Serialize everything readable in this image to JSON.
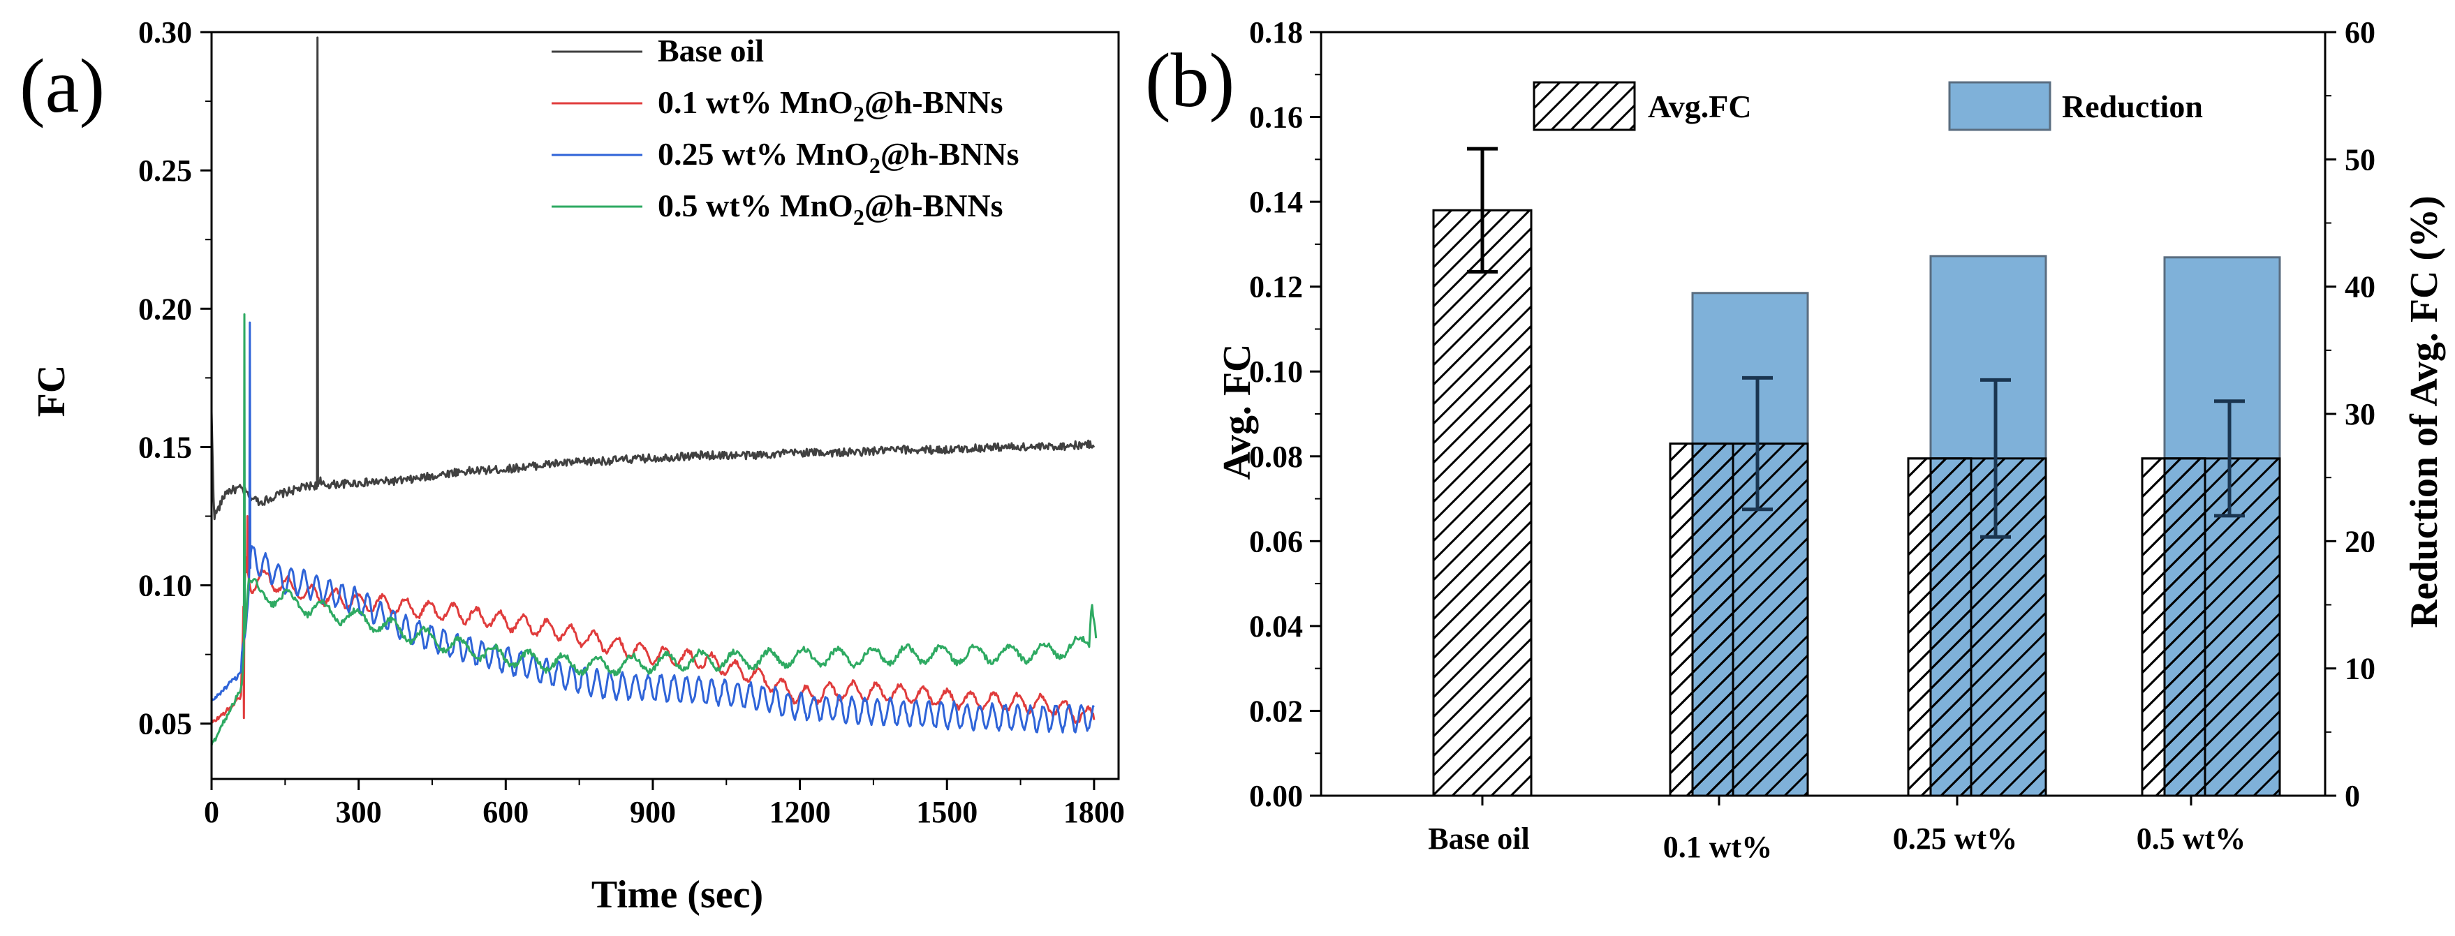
{
  "chart_data": [
    {
      "panel_label": "(a)",
      "type": "line",
      "xlabel": "Time (sec)",
      "ylabel": "FC",
      "xlim": [
        0,
        1850
      ],
      "ylim": [
        0.03,
        0.3
      ],
      "xticks": [
        0,
        300,
        600,
        900,
        1200,
        1500,
        1800
      ],
      "yticks": [
        0.05,
        0.1,
        0.15,
        0.2,
        0.25,
        0.3
      ],
      "legend_position": "top-right",
      "series": [
        {
          "name": "Base oil",
          "label_main": "Base oil",
          "color": "#404040",
          "trend": [
            [
              0,
              0.162
            ],
            [
              5,
              0.125
            ],
            [
              15,
              0.128
            ],
            [
              30,
              0.134
            ],
            [
              60,
              0.135
            ],
            [
              80,
              0.132
            ],
            [
              100,
              0.13
            ],
            [
              140,
              0.133
            ],
            [
              200,
              0.136
            ],
            [
              300,
              0.137
            ],
            [
              400,
              0.138
            ],
            [
              500,
              0.141
            ],
            [
              600,
              0.142
            ],
            [
              700,
              0.144
            ],
            [
              800,
              0.145
            ],
            [
              900,
              0.146
            ],
            [
              1000,
              0.147
            ],
            [
              1100,
              0.147
            ],
            [
              1200,
              0.148
            ],
            [
              1300,
              0.148
            ],
            [
              1400,
              0.149
            ],
            [
              1500,
              0.149
            ],
            [
              1600,
              0.15
            ],
            [
              1700,
              0.15
            ],
            [
              1800,
              0.151
            ]
          ],
          "noise_amp": 0.0015,
          "osc_amp": 0,
          "osc_period": 40,
          "spikes": [
            [
              216,
              0.298
            ],
            [
              222,
              0.139
            ]
          ]
        },
        {
          "name": "0.1 wt% MnO2@h-BNNs",
          "label_main": "0.1 wt% MnO",
          "label_sub": "2",
          "label_tail": "@h-BNNs",
          "color": "#e03c3c",
          "trend": [
            [
              0,
              0.05
            ],
            [
              40,
              0.056
            ],
            [
              60,
              0.06
            ],
            [
              70,
              0.11
            ],
            [
              80,
              0.1
            ],
            [
              100,
              0.103
            ],
            [
              150,
              0.1
            ],
            [
              200,
              0.097
            ],
            [
              300,
              0.094
            ],
            [
              400,
              0.092
            ],
            [
              500,
              0.09
            ],
            [
              600,
              0.087
            ],
            [
              700,
              0.084
            ],
            [
              800,
              0.079
            ],
            [
              900,
              0.075
            ],
            [
              1000,
              0.073
            ],
            [
              1100,
              0.068
            ],
            [
              1200,
              0.06
            ],
            [
              1300,
              0.062
            ],
            [
              1400,
              0.061
            ],
            [
              1500,
              0.059
            ],
            [
              1600,
              0.058
            ],
            [
              1700,
              0.057
            ],
            [
              1800,
              0.052
            ]
          ],
          "noise_amp": 0.0008,
          "osc_amp": 0.003,
          "osc_period": 48,
          "spikes": [
            [
              66,
              0.052
            ],
            [
              73,
              0.125
            ]
          ]
        },
        {
          "name": "0.25 wt% MnO2@h-BNNs",
          "label_main": "0.25 wt% MnO",
          "label_sub": "2",
          "label_tail": "@h-BNNs",
          "color": "#2f64d8",
          "trend": [
            [
              0,
              0.058
            ],
            [
              40,
              0.065
            ],
            [
              60,
              0.068
            ],
            [
              80,
              0.11
            ],
            [
              100,
              0.108
            ],
            [
              150,
              0.102
            ],
            [
              200,
              0.1
            ],
            [
              300,
              0.094
            ],
            [
              400,
              0.084
            ],
            [
              500,
              0.078
            ],
            [
              600,
              0.073
            ],
            [
              700,
              0.068
            ],
            [
              800,
              0.064
            ],
            [
              900,
              0.063
            ],
            [
              1000,
              0.062
            ],
            [
              1100,
              0.06
            ],
            [
              1200,
              0.056
            ],
            [
              1300,
              0.055
            ],
            [
              1400,
              0.054
            ],
            [
              1500,
              0.053
            ],
            [
              1600,
              0.052
            ],
            [
              1700,
              0.052
            ],
            [
              1800,
              0.052
            ]
          ],
          "noise_amp": 0.0008,
          "osc_amp": 0.0045,
          "osc_period": 26,
          "spikes": [
            [
              78,
              0.195
            ]
          ]
        },
        {
          "name": "0.5 wt% MnO2@h-BNNs",
          "label_main": "0.5 wt% MnO",
          "label_sub": "2",
          "label_tail": "@h-BNNs",
          "color": "#2eaa62",
          "trend": [
            [
              0,
              0.042
            ],
            [
              40,
              0.056
            ],
            [
              60,
              0.062
            ],
            [
              75,
              0.1
            ],
            [
              100,
              0.097
            ],
            [
              150,
              0.095
            ],
            [
              200,
              0.092
            ],
            [
              300,
              0.088
            ],
            [
              400,
              0.083
            ],
            [
              500,
              0.078
            ],
            [
              600,
              0.074
            ],
            [
              700,
              0.072
            ],
            [
              800,
              0.071
            ],
            [
              900,
              0.072
            ],
            [
              1000,
              0.073
            ],
            [
              1100,
              0.073
            ],
            [
              1200,
              0.074
            ],
            [
              1300,
              0.074
            ],
            [
              1400,
              0.075
            ],
            [
              1500,
              0.075
            ],
            [
              1600,
              0.075
            ],
            [
              1700,
              0.076
            ],
            [
              1790,
              0.079
            ],
            [
              1795,
              0.096
            ],
            [
              1805,
              0.083
            ]
          ],
          "noise_amp": 0.001,
          "osc_amp": 0.003,
          "osc_period": 70,
          "spikes": [
            [
              67,
              0.198
            ]
          ]
        }
      ]
    },
    {
      "panel_label": "(b)",
      "type": "bar",
      "categories": [
        "Base oil",
        "0.1 wt%",
        "0.25 wt%",
        "0.5 wt%"
      ],
      "ylabel": "Avg. FC",
      "y2label": "Reduction of Avg. FC (%)",
      "ylim": [
        0,
        0.18
      ],
      "y2lim": [
        0,
        60
      ],
      "yticks": [
        0.0,
        0.02,
        0.04,
        0.06,
        0.08,
        0.1,
        0.12,
        0.14,
        0.16,
        0.18
      ],
      "y2ticks": [
        0,
        10,
        20,
        30,
        40,
        50,
        60
      ],
      "legend_position": "top",
      "series": [
        {
          "name": "Avg.FC",
          "axis": "left",
          "pattern": "hatched",
          "values": [
            0.138,
            0.083,
            0.0795,
            0.0795
          ],
          "errors": [
            0.0145,
            0.0155,
            0.0185,
            0.0135
          ]
        },
        {
          "name": "Reduction",
          "axis": "right",
          "color": "#7fb1d9",
          "values": [
            null,
            39.5,
            42.4,
            42.3
          ]
        }
      ]
    }
  ]
}
